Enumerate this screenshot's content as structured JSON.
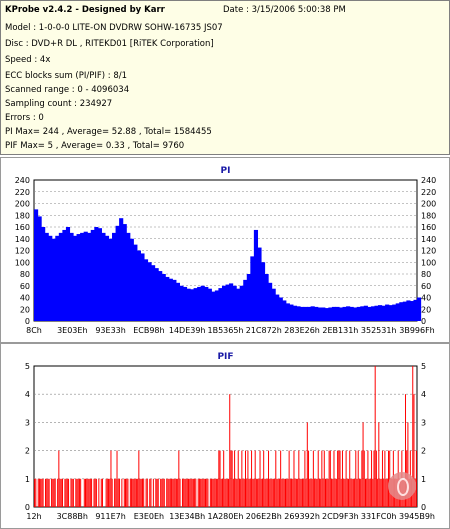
{
  "app": {
    "title": "KProbe v2.4.2 - Designed by Karr",
    "date": "Date : 3/15/2006 5:00:38 PM"
  },
  "info_lines": [
    "Model : 1-0-0-0 LITE-ON DVDRW SOHW-16735 JS07",
    "Disc : DVD+R DL , RITEKD01 [RiTEK Corporation]",
    "Speed : 4x",
    "ECC blocks sum (PI/PIF) : 8/1",
    "Scanned range : 0 - 4096034",
    "Sampling count : 234927",
    "Errors : 0",
    "PI Max= 244 , Average= 52.88 , Total= 1584455",
    "PIF Max= 5 , Average= 0.33 , Total= 9760"
  ],
  "colors": {
    "pi": "#0000ff",
    "pif": "#ff0000",
    "title": "#1a1aa6"
  },
  "chart_data": [
    {
      "type": "area",
      "title": "PI",
      "ylim": [
        0,
        240
      ],
      "yticks": [
        0,
        20,
        40,
        60,
        80,
        100,
        120,
        140,
        160,
        180,
        200,
        220,
        240
      ],
      "xtick_labels": [
        "8Ch",
        "3E03Eh",
        "93E33h",
        "ECB98h",
        "14DE39h",
        "1B5365h",
        "21C872h",
        "283E26h",
        "2EB131h",
        "352531h",
        "3B996Fh"
      ],
      "grid": true,
      "series": [
        {
          "values": [
            190,
            178,
            160,
            150,
            145,
            140,
            145,
            150,
            155,
            160,
            150,
            145,
            148,
            150,
            152,
            150,
            155,
            160,
            158,
            150,
            145,
            140,
            150,
            162,
            175,
            165,
            150,
            140,
            130,
            120,
            115,
            105,
            100,
            95,
            90,
            85,
            80,
            75,
            72,
            70,
            65,
            60,
            58,
            55,
            54,
            56,
            58,
            60,
            58,
            55,
            50,
            52,
            56,
            60,
            62,
            64,
            60,
            55,
            60,
            70,
            80,
            110,
            155,
            125,
            100,
            80,
            65,
            55,
            45,
            40,
            35,
            30,
            28,
            26,
            25,
            24,
            24,
            24,
            25,
            24,
            23,
            23,
            22,
            23,
            24,
            24,
            23,
            24,
            25,
            24,
            23,
            24,
            25,
            26,
            24,
            25,
            26,
            27,
            26,
            28,
            27,
            28,
            30,
            32,
            33,
            35,
            34,
            36,
            40
          ]
        }
      ]
    },
    {
      "type": "bar",
      "title": "PIF",
      "ylim": [
        0,
        5
      ],
      "yticks": [
        0,
        1,
        2,
        3,
        4,
        5
      ],
      "xtick_labels": [
        "12h",
        "3C88Bh",
        "911E7h",
        "E3E0Eh",
        "13E34Bh",
        "1A280Eh",
        "206E2Bh",
        "269392h",
        "2CD9F3h",
        "331FC0h",
        "3945B9h"
      ],
      "grid": true,
      "series": [
        {
          "values": [
            1,
            1,
            0,
            1,
            1,
            1,
            1,
            1,
            0,
            1,
            1,
            1,
            1,
            0,
            1,
            1,
            1,
            1,
            0,
            1,
            2,
            1,
            1,
            1,
            0,
            1,
            1,
            1,
            1,
            0,
            1,
            1,
            1,
            0,
            1,
            1,
            1,
            1,
            1,
            0,
            0,
            1,
            1,
            1,
            1,
            1,
            1,
            1,
            0,
            1,
            1,
            1,
            0,
            1,
            0,
            1,
            1,
            0,
            0,
            1,
            1,
            1,
            1,
            2,
            1,
            0,
            1,
            1,
            2,
            1,
            1,
            0,
            1,
            0,
            1,
            1,
            1,
            1,
            0,
            1,
            1,
            1,
            1,
            1,
            1,
            1,
            2,
            1,
            1,
            1,
            1,
            0,
            1,
            1,
            0,
            1,
            1,
            0,
            1,
            0,
            1,
            1,
            1,
            0,
            1,
            1,
            1,
            1,
            0,
            1,
            1,
            1,
            1,
            1,
            1,
            1,
            1,
            1,
            1,
            2,
            1,
            0,
            1,
            1,
            1,
            1,
            1,
            1,
            1,
            1,
            1,
            1,
            1,
            1,
            0,
            1,
            1,
            1,
            1,
            1,
            1,
            1,
            1,
            1,
            0,
            1,
            1,
            1,
            1,
            1,
            1,
            1,
            2,
            2,
            1,
            1,
            2,
            1,
            1,
            1,
            1,
            4,
            2,
            2,
            1,
            2,
            1,
            1,
            2,
            1,
            1,
            2,
            1,
            1,
            2,
            1,
            2,
            1,
            1,
            2,
            1,
            1,
            2,
            1,
            1,
            1,
            2,
            1,
            1,
            2,
            1,
            1,
            1,
            2,
            1,
            1,
            1,
            1,
            1,
            2,
            1,
            1,
            1,
            2,
            1,
            1,
            1,
            1,
            1,
            1,
            2,
            1,
            1,
            1,
            2,
            1,
            1,
            1,
            2,
            1,
            1,
            1,
            1,
            2,
            1,
            3,
            2,
            1,
            1,
            1,
            2,
            1,
            1,
            1,
            2,
            1,
            1,
            2,
            1,
            2,
            1,
            1,
            1,
            2,
            2,
            1,
            1,
            2,
            1,
            1,
            2,
            2,
            2,
            1,
            2,
            1,
            1,
            2,
            1,
            1,
            2,
            1,
            1,
            1,
            1,
            2,
            1,
            2,
            1,
            1,
            2,
            3,
            2,
            1,
            1,
            2,
            1,
            1,
            2,
            1,
            2,
            5,
            2,
            1,
            3,
            1,
            1,
            2,
            1,
            2,
            1,
            1,
            2,
            2,
            1,
            1,
            2,
            1,
            1,
            1,
            2,
            1,
            1,
            2,
            1,
            1,
            4,
            2,
            3,
            1,
            2,
            1,
            5,
            4,
            1,
            2
          ]
        }
      ]
    }
  ]
}
